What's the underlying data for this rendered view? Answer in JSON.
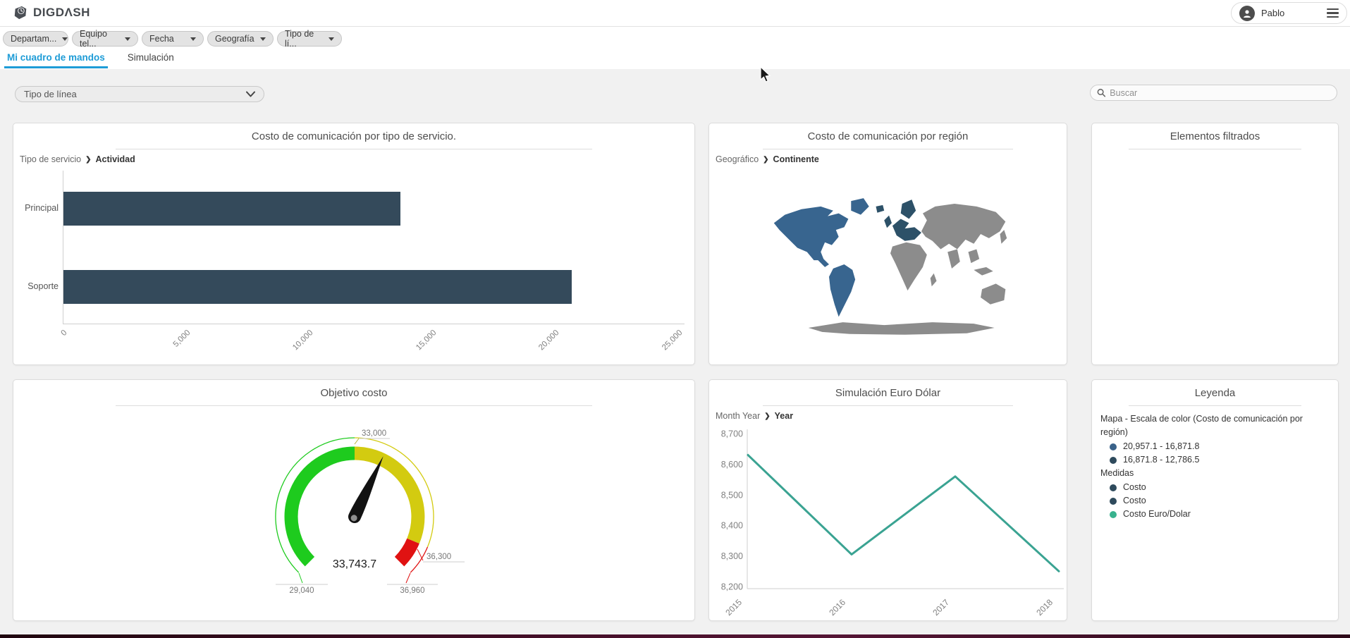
{
  "header": {
    "logo_text": "DIGDΛSH",
    "user_name": "Pablo"
  },
  "filter_bar": {
    "filters": [
      "Departam...",
      "Equipo tel...",
      "Fecha",
      "Geografía",
      "Tipo de lí..."
    ]
  },
  "tabs": [
    {
      "label": "Mi cuadro de mandos",
      "active": true
    },
    {
      "label": "Simulación",
      "active": false
    }
  ],
  "toolbar": {
    "line_type_select_value": "Tipo de línea",
    "search_placeholder": "Buscar"
  },
  "cards": {
    "service_cost": {
      "title": "Costo de comunicación por tipo de servicio.",
      "breadcrumb_parent": "Tipo de servicio",
      "breadcrumb_child": "Actividad"
    },
    "region_cost": {
      "title": "Costo de comunicación por región",
      "breadcrumb_parent": "Geográfico",
      "breadcrumb_child": "Continente"
    },
    "filtered_elements": {
      "title": "Elementos filtrados"
    },
    "cost_target": {
      "title": "Objetivo costo"
    },
    "euro_dollar": {
      "title": "Simulación Euro Dólar",
      "breadcrumb_parent": "Month Year",
      "breadcrumb_child": "Year"
    },
    "legend": {
      "title": "Leyenda",
      "map_scale_title": "Mapa - Escala de color (Costo de comunicación por región)",
      "map_scale": [
        {
          "label": "20,957.1 - 16,871.8",
          "color": "#3a6289"
        },
        {
          "label": "16,871.8 - 12,786.5",
          "color": "#2e4a5c"
        }
      ],
      "measures_title": "Medidas",
      "measures": [
        {
          "label": "Costo",
          "color": "#2e4a5c"
        },
        {
          "label": "Costo",
          "color": "#2e4a5c"
        },
        {
          "label": "Costo Euro/Dolar",
          "color": "#38b28e"
        }
      ]
    }
  },
  "chart_data": [
    {
      "id": "service_cost_bars",
      "type": "bar",
      "title": "Costo de comunicación por tipo de servicio.",
      "categories": [
        "Principal",
        "Soporte"
      ],
      "values": [
        13690,
        20650
      ],
      "series_name": "Costo",
      "bar_color": "#344a5b",
      "xlim": [
        0,
        25000
      ],
      "xtick_labels": [
        "0",
        "5,000",
        "10,000",
        "15,000",
        "20,000",
        "25,000"
      ],
      "grid": false
    },
    {
      "id": "region_map",
      "type": "map",
      "title": "Costo de comunicación por región",
      "regions": [
        {
          "name": "América",
          "value_range": "20,957.1 - 16,871.8",
          "color": "#38658f"
        },
        {
          "name": "Europa",
          "value_range": "16,871.8 - 12,786.5",
          "color": "#2d5168"
        },
        {
          "name": "Sin datos",
          "value_range": "",
          "color": "#8c8c8c"
        }
      ]
    },
    {
      "id": "cost_gauge",
      "type": "gauge",
      "title": "Objetivo costo",
      "value": 33743.7,
      "value_label": "33,743.7",
      "min": 29040,
      "max": 36960,
      "min_label": "29,040",
      "max_label": "36,960",
      "start_angle": -135,
      "end_angle": 135,
      "zones": [
        {
          "from": 29040,
          "to": 33000,
          "color": "#1ecb1e",
          "label": "33,000"
        },
        {
          "from": 33000,
          "to": 36300,
          "color": "#d3cb10",
          "label": "36,300"
        },
        {
          "from": 36300,
          "to": 36960,
          "color": "#e01212",
          "label": "36,960"
        }
      ]
    },
    {
      "id": "euro_dollar_line",
      "type": "line",
      "title": "Simulación Euro Dólar",
      "x": [
        "2015",
        "2016",
        "2017",
        "2018"
      ],
      "values": [
        8630,
        8305,
        8560,
        8250
      ],
      "series_name": "Costo Euro/Dolar",
      "line_color": "#3aa392",
      "ylim": [
        8200,
        8700
      ],
      "ytick_labels": [
        "8,200",
        "8,300",
        "8,400",
        "8,500",
        "8,600",
        "8,700"
      ],
      "grid": false
    }
  ]
}
